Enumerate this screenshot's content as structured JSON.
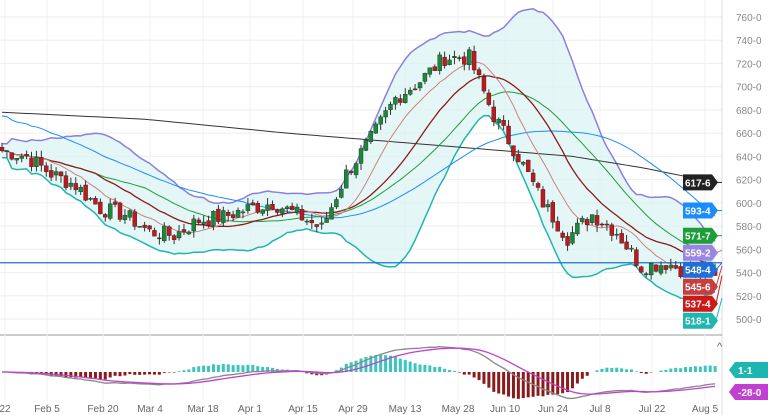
{
  "chart_data": {
    "type": "candlestick",
    "title": "",
    "ylim": [
      490,
      770
    ],
    "y_ticks": [
      "760-0",
      "740-0",
      "720-0",
      "700-0",
      "680-0",
      "660-0",
      "640-0",
      "620-0",
      "600-0",
      "580-0",
      "560-0",
      "540-0",
      "520-0",
      "500-0"
    ],
    "x_ticks": [
      "22",
      "Feb 5",
      "Feb 20",
      "Mar 4",
      "Mar 18",
      "Apr 1",
      "Apr 15",
      "Apr 29",
      "May 13",
      "May 28",
      "Jun 10",
      "Jun 24",
      "Jul 8",
      "Jul 22",
      "Aug 5"
    ],
    "weekly_closes": [
      645,
      640,
      625,
      615,
      595,
      590,
      575,
      572,
      585,
      588,
      595,
      600,
      590,
      578,
      625,
      655,
      690,
      705,
      725,
      725,
      675,
      640,
      600,
      570,
      590,
      575,
      545,
      548,
      540,
      537.4
    ],
    "long_ma_keypoints": [
      678,
      675,
      672,
      666,
      660,
      655,
      650,
      645,
      640,
      630,
      617.6
    ],
    "price_labels": [
      {
        "text": "617-6",
        "value": 617.6,
        "color": "#222222"
      },
      {
        "text": "593-4",
        "value": 593.4,
        "color": "#1a8cff"
      },
      {
        "text": "571-7",
        "value": 571.7,
        "color": "#1e9e3a"
      },
      {
        "text": "559-2",
        "value": 559.2,
        "color": "#9a86e0"
      },
      {
        "text": "548-4",
        "value": 548.4,
        "color": "#1f6fd6"
      },
      {
        "text": "545-6",
        "value": 545.6,
        "color": "#c44040"
      },
      {
        "text": "537-4",
        "value": 537.4,
        "color": "#cc1a1a"
      },
      {
        "text": "518-1",
        "value": 518.1,
        "color": "#1fb5b0"
      }
    ],
    "horizontal_line": 548.4,
    "macd_labels": [
      {
        "text": "1-1",
        "color": "#1fb5b0"
      },
      {
        "text": "-28-0",
        "color": "#c040d0"
      }
    ]
  }
}
